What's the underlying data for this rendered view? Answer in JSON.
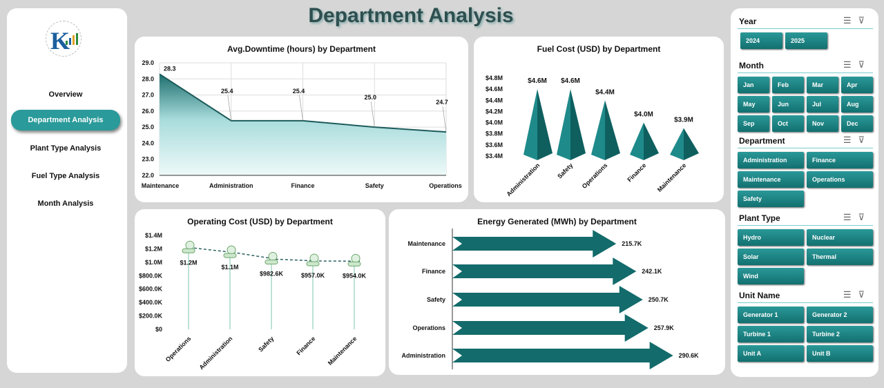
{
  "page_title": "Department Analysis",
  "sidebar": {
    "items": [
      {
        "label": "Overview",
        "active": false
      },
      {
        "label": "Department Analysis",
        "active": true
      },
      {
        "label": "Plant Type Analysis",
        "active": false
      },
      {
        "label": "Fuel Type Analysis",
        "active": false
      },
      {
        "label": "Month Analysis",
        "active": false
      }
    ]
  },
  "colors": {
    "accent": "#1a7f7f",
    "nav_active": "#2a9a9a",
    "arrow": "#136b6b"
  },
  "chart_data": [
    {
      "type": "area",
      "title": "Avg.Downtime (hours) by Department",
      "categories": [
        "Maintenance",
        "Administration",
        "Finance",
        "Safety",
        "Operations"
      ],
      "values": [
        28.3,
        25.4,
        25.4,
        25.0,
        24.7
      ],
      "data_labels": [
        "28.3",
        "25.4",
        "25.4",
        "25.0",
        "24.7"
      ],
      "ylim": [
        22,
        29
      ],
      "yticks": [
        "22.0",
        "23.0",
        "24.0",
        "25.0",
        "26.0",
        "27.0",
        "28.0",
        "29.0"
      ],
      "grid": true
    },
    {
      "type": "bar",
      "style": "pyramid",
      "title": "Fuel Cost (USD) by Department",
      "categories": [
        "Administration",
        "Safety",
        "Operations",
        "Finance",
        "Maintenance"
      ],
      "values": [
        4.6,
        4.6,
        4.4,
        4.0,
        3.9
      ],
      "data_labels": [
        "$4.6M",
        "$4.6M",
        "$4.4M",
        "$4.0M",
        "$3.9M"
      ],
      "ylim": [
        3.4,
        4.8
      ],
      "yticks": [
        "$3.4M",
        "$3.6M",
        "$3.8M",
        "$4.0M",
        "$4.2M",
        "$4.4M",
        "$4.6M",
        "$4.8M"
      ]
    },
    {
      "type": "line",
      "style": "icon-markers",
      "title": "Operating Cost (USD) by Department",
      "categories": [
        "Operations",
        "Administration",
        "Safety",
        "Finance",
        "Maintenance"
      ],
      "values": [
        1150000,
        1080000,
        982600,
        957000,
        954000
      ],
      "data_labels": [
        "$1.2M",
        "$1.1M",
        "$982.6K",
        "$957.0K",
        "$954.0K"
      ],
      "ylim": [
        0,
        1400000
      ],
      "yticks": [
        "$0",
        "$200.0K",
        "$400.0K",
        "$600.0K",
        "$800.0K",
        "$1.0M",
        "$1.2M",
        "$1.4M"
      ]
    },
    {
      "type": "bar",
      "orientation": "horizontal",
      "style": "arrow",
      "title": "Energy Generated (MWh) by Department",
      "categories": [
        "Maintenance",
        "Finance",
        "Safety",
        "Operations",
        "Administration"
      ],
      "values": [
        215.7,
        242.1,
        250.7,
        257.9,
        290.6
      ],
      "data_labels": [
        "215.7K",
        "242.1K",
        "250.7K",
        "257.9K",
        "290.6K"
      ]
    }
  ],
  "filters": [
    {
      "title": "Year",
      "cols": 2,
      "items": [
        "2024",
        "2025"
      ]
    },
    {
      "title": "Month",
      "cols": 4,
      "items": [
        "Jan",
        "Feb",
        "Mar",
        "Apr",
        "May",
        "Jun",
        "Jul",
        "Aug",
        "Sep",
        "Oct",
        "Nov",
        "Dec"
      ]
    },
    {
      "title": "Department",
      "cols": 2,
      "items": [
        "Administration",
        "Finance",
        "Maintenance",
        "Operations",
        "Safety"
      ]
    },
    {
      "title": "Plant Type",
      "cols": 2,
      "items": [
        "Hydro",
        "Nuclear",
        "Solar",
        "Thermal",
        "Wind"
      ]
    },
    {
      "title": "Unit Name",
      "cols": 2,
      "items": [
        "Generator 1",
        "Generator 2",
        "Turbine 1",
        "Turbine 2",
        "Unit A",
        "Unit B"
      ]
    }
  ]
}
